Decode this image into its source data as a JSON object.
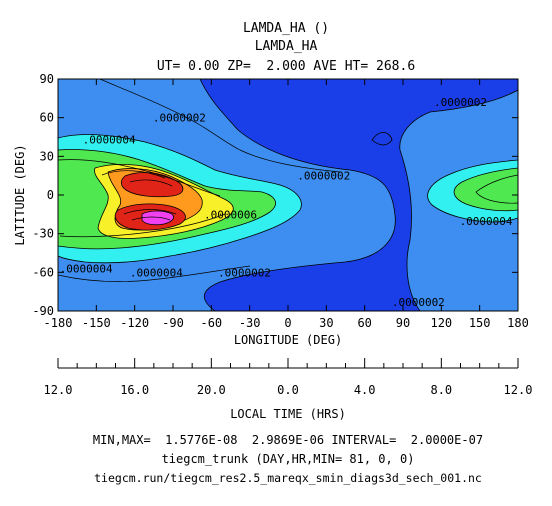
{
  "chart_data": {
    "type": "contour",
    "title": [
      "LAMDA_HA ()",
      "LAMDA_HA",
      "UT= 0.00 ZP=  2.000 AVE HT= 268.6"
    ],
    "xlabel": "LONGITUDE (DEG)",
    "ylabel": "LATITUDE (DEG)",
    "xlim": [
      -180,
      180
    ],
    "ylim": [
      -90,
      90
    ],
    "x_ticks": [
      -180,
      -150,
      -120,
      -90,
      -60,
      -30,
      0,
      30,
      60,
      90,
      120,
      150,
      180
    ],
    "y_ticks": [
      90,
      60,
      30,
      0,
      -30,
      -60,
      -90
    ],
    "local_time_label": "LOCAL TIME (HRS)",
    "local_time_ticks": [
      "12.0",
      "16.0",
      "20.0",
      "0.0",
      "4.0",
      "8.0",
      "12.0"
    ],
    "contour_labels": [
      {
        "text": ".0000004",
        "x": -140,
        "y": 43
      },
      {
        "text": ".0000002",
        "x": -85,
        "y": 60
      },
      {
        "text": ".0000002",
        "x": 135,
        "y": 72
      },
      {
        "text": ".0000002",
        "x": 28,
        "y": 15
      },
      {
        "text": ".0000006",
        "x": -45,
        "y": -15
      },
      {
        "text": ".0000004",
        "x": 155,
        "y": -20
      },
      {
        "text": ".0000004",
        "x": -158,
        "y": -57
      },
      {
        "text": ".0000004",
        "x": -103,
        "y": -60
      },
      {
        "text": ".0000002",
        "x": -34,
        "y": -60
      },
      {
        "text": ".0000002",
        "x": 102,
        "y": -83
      }
    ],
    "levels": [
      2e-07,
      4e-07,
      6e-07,
      8e-07,
      1e-06,
      1.2e-06,
      1.4e-06,
      1.6e-06,
      1.8e-06,
      2e-06,
      2.2e-06,
      2.4e-06,
      2.6e-06,
      2.8e-06
    ],
    "colors": {
      "background_low": "#3d8ef0",
      "lowest": "#1a3ee8",
      "mid_cyan": "#33f0f0",
      "green": "#4fe850",
      "yellow": "#f8f028",
      "orange": "#ff9a1f",
      "red": "#e02418",
      "magenta": "#f040f0"
    }
  },
  "footer": {
    "minmax": "MIN,MAX=  1.5776E-08  2.9869E-06 INTERVAL=  2.0000E-07",
    "run_info": "tiegcm_trunk (DAY,HR,MIN= 81, 0, 0)",
    "file": "tiegcm.run/tiegcm_res2.5_mareqx_smin_diags3d_sech_001.nc"
  }
}
